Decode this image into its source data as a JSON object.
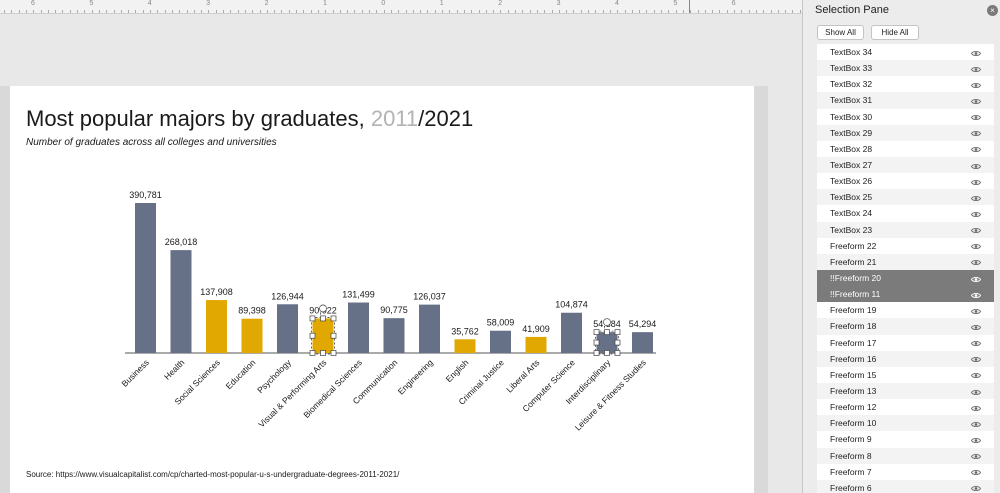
{
  "ruler": {
    "labels": [
      "6",
      "5",
      "4",
      "3",
      "2",
      "1",
      "0",
      "1",
      "2",
      "3",
      "4",
      "5",
      "6"
    ]
  },
  "slide": {
    "title_main": "Most popular majors by graduates, ",
    "title_year1": "2011",
    "title_sep_year2": "/2021",
    "subtitle": "Number of graduates across all colleges and universities",
    "source": "Source: https://www.visualcapitalist.com/cp/charted-most-popular-u-s-undergraduate-degrees-2011-2021/"
  },
  "colors": {
    "gray_bar": "#667086",
    "gold_bar": "#e0a800",
    "selection": "#7b7b7b"
  },
  "chart_data": {
    "type": "bar",
    "categories": [
      "Business",
      "Health",
      "Social Sciences",
      "Education",
      "Psychology",
      "Visual & Performing Arts",
      "Biomedical Sciences",
      "Communication",
      "Engineering",
      "English",
      "Criminal Justice",
      "Liberal Arts",
      "Computer Science",
      "Interdisciplinary",
      "Leisure & Fitness Studies"
    ],
    "values": [
      390781,
      268018,
      137908,
      89398,
      126944,
      90022,
      131499,
      90775,
      126037,
      35762,
      58009,
      41909,
      104874,
      54384,
      54294
    ],
    "labels": [
      "390,781",
      "268,018",
      "137,908",
      "89,398",
      "126,944",
      "90,022",
      "131,499",
      "90,775",
      "126,037",
      "35,762",
      "58,009",
      "41,909",
      "104,874",
      "54,384",
      "54,294"
    ],
    "bar_colors": [
      "gray",
      "gray",
      "gold",
      "gold",
      "gray",
      "gold",
      "gray",
      "gray",
      "gray",
      "gold",
      "gray",
      "gold",
      "gray",
      "gray",
      "gray"
    ],
    "selected_bars": [
      "Visual & Performing Arts",
      "Interdisciplinary"
    ],
    "ylim": [
      0,
      400000
    ],
    "grid": false,
    "legend": "none"
  },
  "pane": {
    "title": "Selection Pane",
    "show_all": "Show All",
    "hide_all": "Hide All",
    "items": [
      {
        "name": "TextBox 34",
        "selected": false
      },
      {
        "name": "TextBox 33",
        "selected": false
      },
      {
        "name": "TextBox 32",
        "selected": false
      },
      {
        "name": "TextBox 31",
        "selected": false
      },
      {
        "name": "TextBox 30",
        "selected": false
      },
      {
        "name": "TextBox 29",
        "selected": false
      },
      {
        "name": "TextBox 28",
        "selected": false
      },
      {
        "name": "TextBox 27",
        "selected": false
      },
      {
        "name": "TextBox 26",
        "selected": false
      },
      {
        "name": "TextBox 25",
        "selected": false
      },
      {
        "name": "TextBox 24",
        "selected": false
      },
      {
        "name": "TextBox 23",
        "selected": false
      },
      {
        "name": "Freeform 22",
        "selected": false
      },
      {
        "name": "Freeform 21",
        "selected": false
      },
      {
        "name": "!!Freeform 20",
        "selected": true
      },
      {
        "name": "!!Freeform 11",
        "selected": true
      },
      {
        "name": "Freeform 19",
        "selected": false
      },
      {
        "name": "Freeform 18",
        "selected": false
      },
      {
        "name": "Freeform 17",
        "selected": false
      },
      {
        "name": "Freeform 16",
        "selected": false
      },
      {
        "name": "Freeform 15",
        "selected": false
      },
      {
        "name": "Freeform 13",
        "selected": false
      },
      {
        "name": "Freeform 12",
        "selected": false
      },
      {
        "name": "Freeform 10",
        "selected": false
      },
      {
        "name": "Freeform 9",
        "selected": false
      },
      {
        "name": "Freeform 8",
        "selected": false
      },
      {
        "name": "Freeform 7",
        "selected": false
      },
      {
        "name": "Freeform 6",
        "selected": false
      }
    ]
  }
}
